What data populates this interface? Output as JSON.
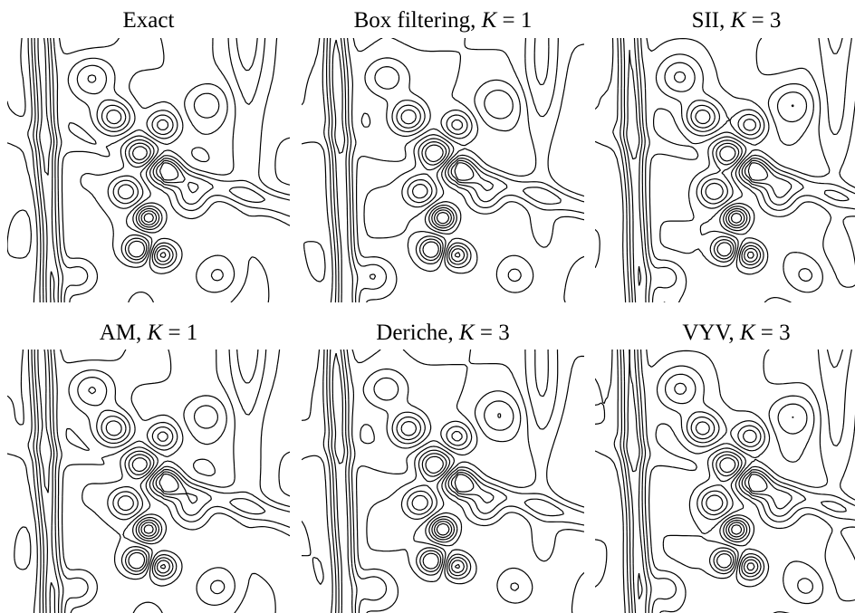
{
  "panels": [
    {
      "title": [
        "Exact"
      ]
    },
    {
      "title": [
        "Box filtering, ",
        "K",
        " = 1"
      ]
    },
    {
      "title": [
        "SII, ",
        "K",
        " = 3"
      ]
    },
    {
      "title": [
        "AM, ",
        "K",
        " = 1"
      ]
    },
    {
      "title": [
        "Deriche, ",
        "K",
        " = 3"
      ]
    },
    {
      "title": [
        "VYV, ",
        "K",
        " = 3"
      ]
    }
  ]
}
